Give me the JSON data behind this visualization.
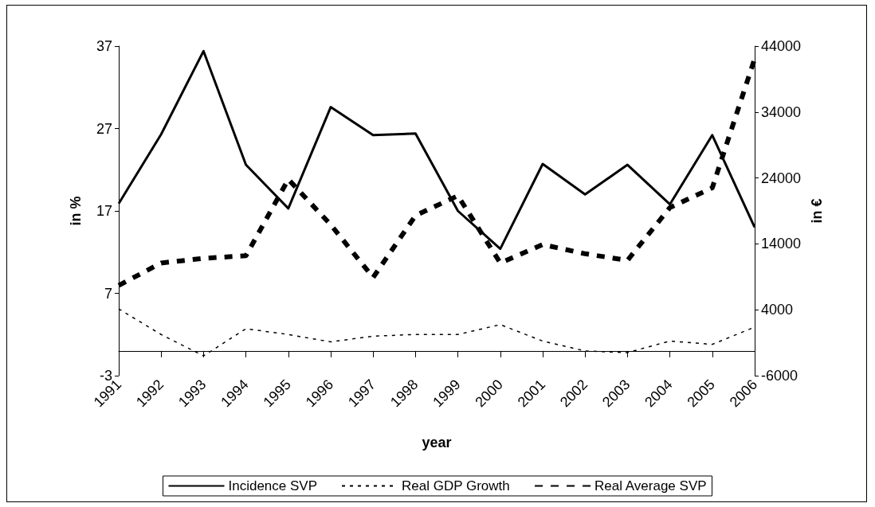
{
  "chart_data": {
    "type": "line",
    "xlabel": "year",
    "ylabel": "in %",
    "y2label": "in €",
    "categories": [
      "1991",
      "1992",
      "1993",
      "1994",
      "1995",
      "1996",
      "1997",
      "1998",
      "1999",
      "2000",
      "2001",
      "2002",
      "2003",
      "2004",
      "2005",
      "2006"
    ],
    "series": [
      {
        "name": "Incidence SVP",
        "color": "#000000",
        "line_style": "solid",
        "values": [
          17.9,
          26.3,
          36.4,
          22.6,
          17.3,
          29.6,
          26.2,
          26.4,
          17.0,
          12.4,
          22.7,
          19.0,
          22.6,
          17.8,
          26.2,
          15.0
        ]
      },
      {
        "name": "Real GDP Growth",
        "color": "#000000",
        "line_style": "dotted",
        "values": [
          5.1,
          2.0,
          -0.6,
          2.7,
          2.0,
          1.1,
          1.8,
          2.0,
          2.0,
          3.2,
          1.2,
          0.0,
          -0.2,
          1.2,
          0.8,
          2.9
        ]
      },
      {
        "name": "Real Average SVP",
        "color": "#000000",
        "line_style": "dashed",
        "axis": "y2",
        "values": [
          7700,
          11100,
          11800,
          12200,
          23800,
          16900,
          8900,
          18300,
          21300,
          11100,
          13900,
          12500,
          11500,
          19500,
          22500,
          42100
        ]
      }
    ],
    "ylim": [
      -3,
      37
    ],
    "yticks": [
      -3,
      7,
      17,
      27,
      37
    ],
    "y2lim": [
      -6000,
      44000
    ],
    "y2ticks": [
      -6000,
      4000,
      14000,
      24000,
      34000,
      44000
    ],
    "grid": false,
    "legend": "bottom",
    "marker": "none"
  }
}
